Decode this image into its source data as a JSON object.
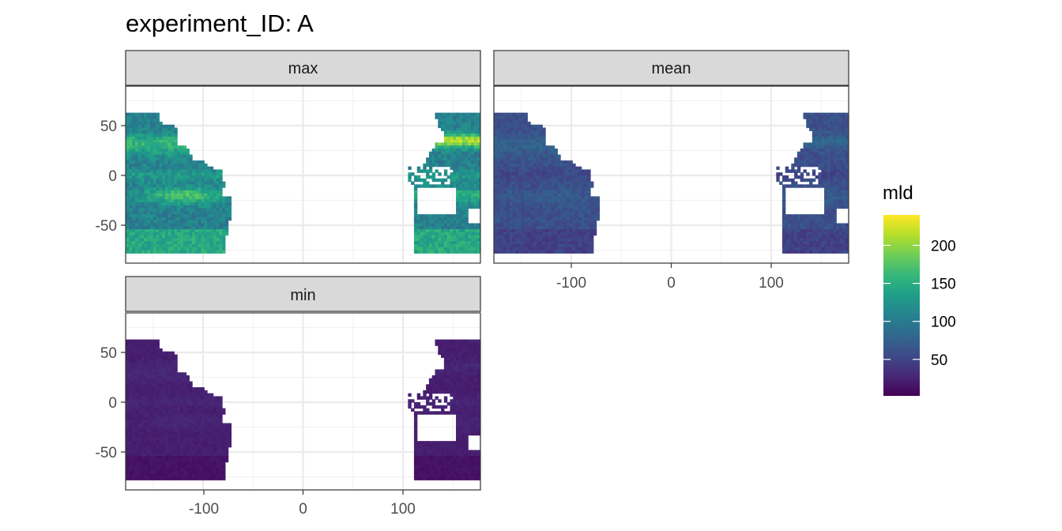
{
  "chart_data": {
    "type": "heatmap",
    "title": "experiment_ID: A",
    "facet_order": [
      "max",
      "mean",
      "min"
    ],
    "panels": [
      {
        "name": "max",
        "fill_profile": {
          "base": 105,
          "equatorial": 25,
          "east_low": 35,
          "south_band": 70,
          "south_band_lat": -20,
          "kuroshio": 110,
          "kuroshio_lat": 35,
          "southern_ocean": 40
        }
      },
      {
        "name": "mean",
        "fill_profile": {
          "base": 60,
          "equatorial": -8,
          "east_low": 15,
          "south_band": 12,
          "south_band_lat": -22,
          "kuroshio": 18,
          "kuroshio_lat": 35,
          "southern_ocean": -12
        }
      },
      {
        "name": "min",
        "fill_profile": {
          "base": 22,
          "equatorial": 5,
          "east_low": 6,
          "south_band": 6,
          "south_band_lat": -20,
          "kuroshio": 5,
          "kuroshio_lat": 35,
          "southern_ocean": -8
        }
      }
    ],
    "x_axis": {
      "ticks": [
        -100,
        0,
        100
      ],
      "tick_labels": [
        "-100",
        "0",
        "100"
      ],
      "range": [
        -180,
        180
      ]
    },
    "y_axis": {
      "ticks": [
        50,
        0,
        -50
      ],
      "tick_labels": [
        "50",
        "0",
        "-50"
      ],
      "range": [
        -80,
        90
      ]
    },
    "grid": true,
    "legend": {
      "title": "mld",
      "position": "right",
      "range": [
        2,
        240
      ],
      "ticks": [
        50,
        100,
        150,
        200
      ],
      "tick_labels": [
        "50",
        "100",
        "150",
        "200"
      ],
      "colormap": [
        "#440154",
        "#482878",
        "#3e4a89",
        "#31688e",
        "#26828e",
        "#1f9e89",
        "#35b779",
        "#6ece58",
        "#b5de2b",
        "#fde725"
      ]
    }
  }
}
